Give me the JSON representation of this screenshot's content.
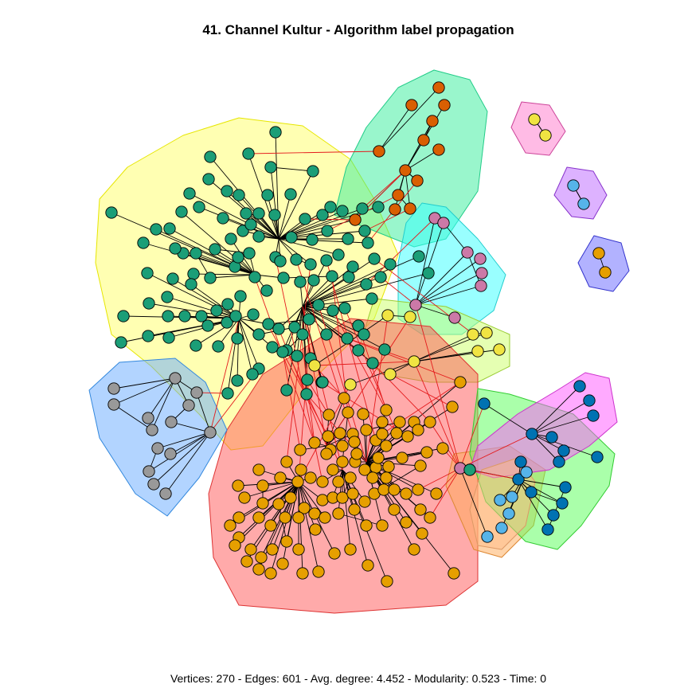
{
  "title": "41. Channel Kultur - Algorithm label propagation",
  "footer": "Vertices: 270 - Edges: 601 - Avg. degree: 4.452 - Modularity: 0.523 - Time: 0",
  "colors": {
    "intra_edge": "#000000",
    "inter_edge": "#e41a1c",
    "node_stroke": "#000000"
  },
  "communities": [
    {
      "name": "community-yellow",
      "hull_fill": "#ffff66",
      "hull_stroke": "#e6e600",
      "node_color": "#1b9e77"
    },
    {
      "name": "community-mint",
      "hull_fill": "#33ee99",
      "hull_stroke": "#22cc88",
      "node_color": "#d95f02"
    },
    {
      "name": "community-cyan",
      "hull_fill": "#33ffff",
      "hull_stroke": "#22cccc",
      "node_color": "#cc79a7"
    },
    {
      "name": "community-lime",
      "hull_fill": "#ccff66",
      "hull_stroke": "#99cc33",
      "node_color": "#f0e442"
    },
    {
      "name": "community-red",
      "hull_fill": "#ff5555",
      "hull_stroke": "#dd3333",
      "node_color": "#e69f00"
    },
    {
      "name": "community-orange",
      "hull_fill": "#ffaa55",
      "hull_stroke": "#dd8833",
      "node_color": "#e69f00"
    },
    {
      "name": "community-blue",
      "hull_fill": "#66aaff",
      "hull_stroke": "#3388dd",
      "node_color": "#999999"
    },
    {
      "name": "community-green",
      "hull_fill": "#55ff55",
      "hull_stroke": "#33cc33",
      "node_color": "#0072b2"
    },
    {
      "name": "community-magenta",
      "hull_fill": "#ff55ff",
      "hull_stroke": "#cc33cc",
      "node_color": "#1b9e77"
    },
    {
      "name": "community-sky",
      "hull_fill": "#ffbb88",
      "hull_stroke": "#dd9966",
      "node_color": "#56b4e9"
    },
    {
      "name": "community-pink",
      "hull_fill": "#ff77cc",
      "hull_stroke": "#cc4499",
      "node_color": "#f0e442"
    },
    {
      "name": "community-violet",
      "hull_fill": "#bb66ff",
      "hull_stroke": "#8833cc",
      "node_color": "#56b4e9"
    },
    {
      "name": "community-indigo",
      "hull_fill": "#6666ff",
      "hull_stroke": "#3333cc",
      "node_color": "#e69f00"
    }
  ]
}
